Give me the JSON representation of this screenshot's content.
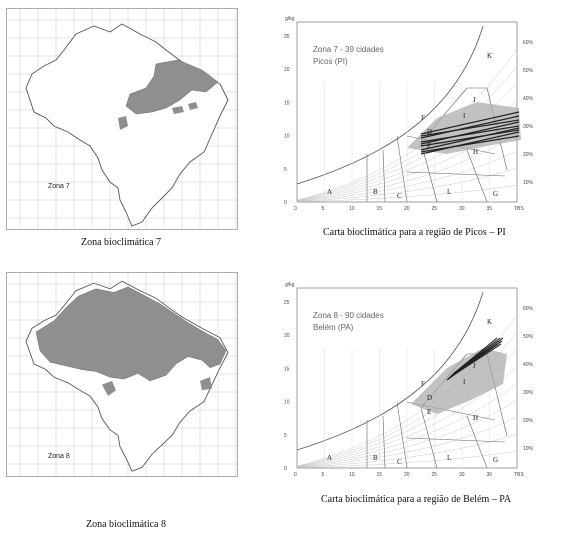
{
  "figures": [
    {
      "map": {
        "zone_label": "Zona 7"
      },
      "map_caption": "Zona bioclimática 7",
      "chart": {
        "title_line1": "Zona 7 - 39 cidades",
        "title_line2": "Picos (PI)"
      },
      "chart_caption": "Carta bioclimática para a região de Picos – PI"
    },
    {
      "map": {
        "zone_label": "Zona 8"
      },
      "map_caption": "Zona bioclimática 8",
      "chart": {
        "title_line1": "Zona 8 - 90 cidades",
        "title_line2": "Belém (PA)"
      },
      "chart_caption": "Carta bioclimática para a região de Belém – PA"
    }
  ],
  "chart_axes": {
    "ug_unit": "g/kg",
    "ug_ticks": [
      "25",
      "20",
      "15",
      "10",
      "5",
      "0"
    ],
    "x_ticks": [
      "0",
      "5",
      "10",
      "15",
      "20",
      "25",
      "30",
      "35",
      "TBS"
    ],
    "rh_ticks": [
      "60%",
      "50%",
      "40%",
      "30%",
      "20%",
      "10%"
    ],
    "zone_letters": [
      "A",
      "B",
      "C",
      "D",
      "E",
      "F",
      "G",
      "H",
      "I",
      "J",
      "K",
      "L"
    ]
  },
  "colors": {
    "shade": "#8f8f8f",
    "line": "#222222",
    "grid": "#bdbdbd"
  }
}
